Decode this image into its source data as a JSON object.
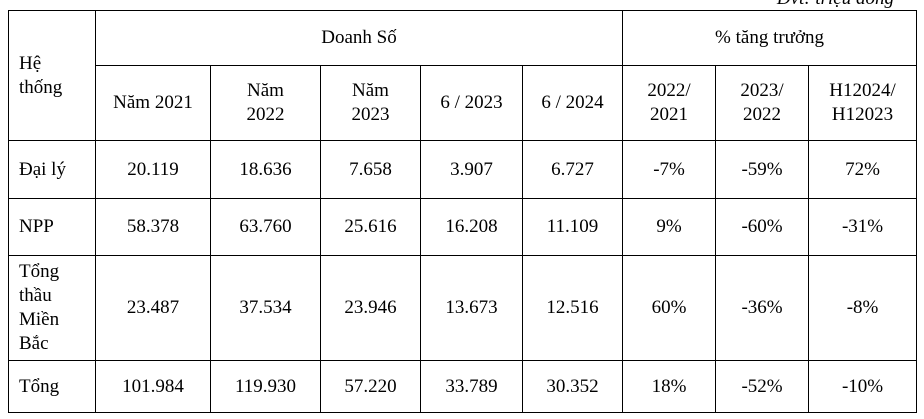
{
  "note": "Đvt: triệu đồng",
  "table": {
    "header": {
      "system": "Hệ\nthống",
      "sales": "Doanh Số",
      "growth": "% tăng trưởng"
    },
    "subheaders": [
      "Năm 2021",
      "Năm\n2022",
      "Năm\n2023",
      "6 / 2023",
      "6 / 2024",
      "2022/\n2021",
      "2023/\n2022",
      "H12024/\nH12023"
    ],
    "rows": [
      {
        "label": "Đại lý",
        "cells": [
          "20.119",
          "18.636",
          "7.658",
          "3.907",
          "6.727",
          "-7%",
          "-59%",
          "72%"
        ]
      },
      {
        "label": "NPP",
        "cells": [
          "58.378",
          "63.760",
          "25.616",
          "16.208",
          "11.109",
          "9%",
          "-60%",
          "-31%"
        ]
      },
      {
        "label": "Tổng\nthầu\nMiền\nBắc",
        "cells": [
          "23.487",
          "37.534",
          "23.946",
          "13.673",
          "12.516",
          "60%",
          "-36%",
          "-8%"
        ]
      },
      {
        "label": "Tổng",
        "cells": [
          "101.984",
          "119.930",
          "57.220",
          "33.789",
          "30.352",
          "18%",
          "-52%",
          "-10%"
        ]
      }
    ]
  }
}
